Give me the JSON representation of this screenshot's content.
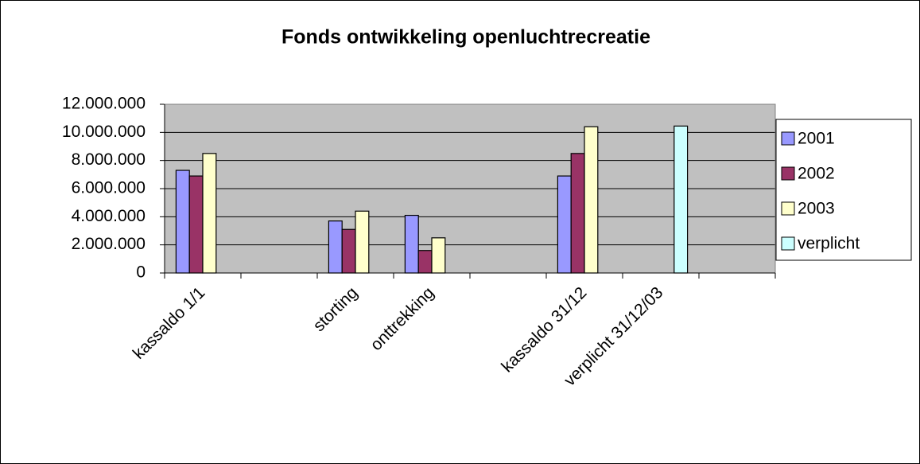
{
  "chart_data": {
    "type": "bar",
    "title": "Fonds ontwikkeling openluchtrecreatie",
    "categories": [
      "kassaldo  1/1",
      null,
      "storting",
      "onttrekking",
      null,
      "kassaldo 31/12",
      "verplicht 31/12/03",
      null
    ],
    "series": [
      {
        "name": "2001",
        "color": "#9999ff",
        "values": [
          7300000,
          null,
          3700000,
          4100000,
          null,
          6900000,
          null,
          null
        ]
      },
      {
        "name": "2002",
        "color": "#993366",
        "values": [
          6900000,
          null,
          3100000,
          1600000,
          null,
          8500000,
          null,
          null
        ]
      },
      {
        "name": "2003",
        "color": "#ffffcc",
        "values": [
          8500000,
          null,
          4400000,
          2500000,
          null,
          10400000,
          null,
          null
        ]
      },
      {
        "name": "verplicht",
        "color": "#ccffff",
        "values": [
          null,
          null,
          null,
          null,
          null,
          null,
          10450000,
          null
        ]
      }
    ],
    "ylim": [
      0,
      12000000
    ],
    "yticks": [
      0,
      {
        "value": 2000000,
        "label": "2.000.000"
      },
      {
        "value": 4000000,
        "label": "4.000.000"
      },
      {
        "value": 6000000,
        "label": "6.000.000"
      },
      {
        "value": 8000000,
        "label": "8.000.000"
      },
      {
        "value": 10000000,
        "label": "10.000.000"
      },
      {
        "value": 12000000,
        "label": "12.000.000"
      }
    ],
    "grid": true,
    "legend": "right",
    "plot_background": "#c0c0c0"
  }
}
